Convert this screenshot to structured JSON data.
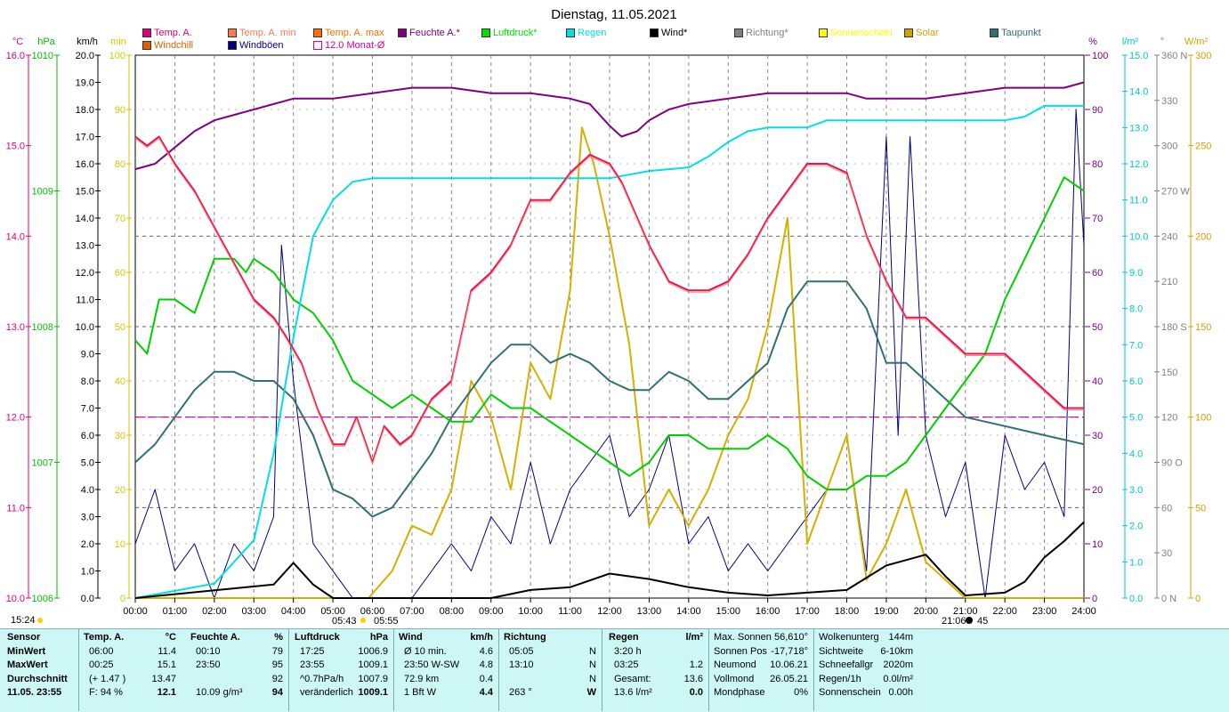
{
  "title": "Dienstag, 11.05.2021",
  "axes": {
    "left": [
      {
        "unit": "°C",
        "color": "#e0007a",
        "ticks": [
          "16.0",
          "15.0",
          "14.0",
          "13.0",
          "12.0",
          "11.0",
          "10.0"
        ]
      },
      {
        "unit": "hPa",
        "color": "#00c000",
        "ticks": [
          "1010",
          "1009",
          "1008",
          "1007",
          "1006"
        ]
      },
      {
        "unit": "km/h",
        "color": "#000000",
        "ticks": [
          "20.0",
          "19.0",
          "18.0",
          "17.0",
          "16.0",
          "15.0",
          "14.0",
          "13.0",
          "12.0",
          "11.0",
          "10.0",
          "9.0",
          "8.0",
          "7.0",
          "6.0",
          "5.0",
          "4.0",
          "3.0",
          "2.0",
          "1.0",
          "0.0"
        ]
      },
      {
        "unit": "min",
        "color": "#d4c800",
        "ticks": [
          "100",
          "90",
          "80",
          "70",
          "60",
          "50",
          "40",
          "30",
          "20",
          "10",
          "0"
        ]
      }
    ],
    "right": [
      {
        "unit": "%",
        "color": "#800080",
        "ticks": [
          "100",
          "90",
          "80",
          "70",
          "60",
          "50",
          "40",
          "30",
          "20",
          "10",
          "0"
        ]
      },
      {
        "unit": "l/m²",
        "color": "#00c8c8",
        "ticks": [
          "15.0",
          "14.0",
          "13.0",
          "12.0",
          "11.0",
          "10.0",
          "9.0",
          "8.0",
          "7.0",
          "6.0",
          "5.0",
          "4.0",
          "3.0",
          "2.0",
          "1.0",
          "0.0"
        ]
      },
      {
        "unit": "°",
        "color": "#808080",
        "ticks": [
          "360 N",
          "330",
          "300",
          "270 W",
          "240",
          "210",
          "180 S",
          "150",
          "120",
          "90  O",
          "60",
          "30",
          "0   N"
        ]
      },
      {
        "unit": "W/m²",
        "color": "#d4a000",
        "ticks": [
          "300",
          "250",
          "200",
          "150",
          "100",
          "50",
          "0"
        ]
      }
    ],
    "x_ticks": [
      "00:00",
      "01:00",
      "02:00",
      "03:00",
      "04:00",
      "05:00",
      "06:00",
      "07:00",
      "08:00",
      "09:00",
      "10:00",
      "11:00",
      "12:00",
      "13:00",
      "14:00",
      "15:00",
      "16:00",
      "17:00",
      "18:00",
      "19:00",
      "20:00",
      "21:00",
      "22:00",
      "23:00",
      "24:00"
    ]
  },
  "legend": [
    {
      "label": "Temp. A.",
      "color": "#e0007a"
    },
    {
      "label": "Windchill",
      "color": "#e06000"
    },
    {
      "label": "Temp. A. min",
      "color": "#ff7a50"
    },
    {
      "label": "Windböen",
      "color": "#000080"
    },
    {
      "label": "Temp. A. max",
      "color": "#ff7000"
    },
    {
      "label": "12.0 Monat-Ø",
      "color": "#d000a0"
    },
    {
      "label": "Feuchte A.*",
      "color": "#800080"
    },
    {
      "label": "Luftdruck*",
      "color": "#00e000"
    },
    {
      "label": "Regen",
      "color": "#00e0e0"
    },
    {
      "label": "Wind*",
      "color": "#000000"
    },
    {
      "label": "Richtung*",
      "color": "#808080"
    },
    {
      "label": "Sonnenschein",
      "color": "#ffff00"
    },
    {
      "label": "Solar",
      "color": "#d4a000"
    },
    {
      "label": "Taupunkt",
      "color": "#307070"
    }
  ],
  "annotations": {
    "time_now": "15:24",
    "sunrise": "05:43",
    "sunrise2": "05:55",
    "sunset": "21:06",
    "sunset2": "45"
  },
  "chart_data": {
    "type": "line",
    "x_unit": "hours",
    "monthly_avg_temp": 12.0,
    "series": [
      {
        "name": "Temp. A.",
        "unit": "°C",
        "color": "#e81060",
        "x": [
          0,
          0.3,
          0.6,
          1,
          1.5,
          2,
          2.5,
          3,
          3.5,
          3.8,
          4.2,
          4.6,
          5,
          5.3,
          5.6,
          6,
          6.3,
          6.7,
          7,
          7.5,
          8,
          8.5,
          9,
          9.5,
          10,
          10.5,
          11,
          11.5,
          12,
          12.3,
          12.7,
          13,
          13.5,
          14,
          14.5,
          15,
          15.5,
          16,
          16.5,
          17,
          17.5,
          18,
          18.5,
          19,
          19.5,
          20,
          20.5,
          21,
          21.5,
          22,
          22.5,
          23,
          23.5,
          24
        ],
        "y": [
          15.1,
          15.0,
          15.1,
          14.8,
          14.5,
          14.1,
          13.7,
          13.3,
          13.1,
          12.9,
          12.6,
          12.1,
          11.7,
          11.7,
          12.0,
          11.5,
          11.9,
          11.7,
          11.8,
          12.2,
          12.4,
          13.4,
          13.6,
          13.9,
          14.4,
          14.4,
          14.7,
          14.9,
          14.8,
          14.6,
          14.2,
          13.9,
          13.5,
          13.4,
          13.4,
          13.5,
          13.8,
          14.2,
          14.5,
          14.8,
          14.8,
          14.7,
          14.0,
          13.5,
          13.1,
          13.1,
          12.9,
          12.7,
          12.7,
          12.7,
          12.5,
          12.3,
          12.1,
          12.1
        ]
      },
      {
        "name": "Feuchte A.*",
        "unit": "%",
        "color": "#800080",
        "x": [
          0,
          0.5,
          1,
          1.5,
          2,
          2.5,
          3,
          3.5,
          4,
          5,
          6,
          7,
          8,
          9,
          10,
          11,
          11.5,
          12,
          12.3,
          12.7,
          13,
          13.5,
          14,
          15,
          16,
          17,
          18,
          18.5,
          19,
          20,
          21,
          22,
          22.5,
          23,
          23.5,
          24
        ],
        "y": [
          79,
          80,
          83,
          86,
          88,
          89,
          90,
          91,
          92,
          92,
          93,
          94,
          94,
          93,
          93,
          92,
          91,
          87,
          85,
          86,
          88,
          90,
          91,
          92,
          93,
          93,
          93,
          92,
          92,
          92,
          93,
          94,
          94,
          94,
          94,
          95
        ]
      },
      {
        "name": "Luftdruck*",
        "unit": "hPa",
        "color": "#00d000",
        "x": [
          0,
          0.3,
          0.6,
          1,
          1.5,
          2,
          2.5,
          2.8,
          3,
          3.5,
          4,
          4.5,
          5,
          5.5,
          6,
          6.5,
          7,
          7.5,
          8,
          8.5,
          9,
          9.5,
          10,
          10.5,
          11,
          11.5,
          12,
          12.5,
          13,
          13.5,
          14,
          14.5,
          15,
          15.5,
          16,
          16.5,
          17,
          17.5,
          18,
          18.5,
          19,
          19.5,
          20,
          20.5,
          21,
          21.5,
          22,
          22.5,
          23,
          23.5,
          24
        ],
        "y": [
          1007.9,
          1007.8,
          1008.2,
          1008.2,
          1008.1,
          1008.5,
          1008.5,
          1008.4,
          1008.5,
          1008.4,
          1008.2,
          1008.1,
          1007.9,
          1007.6,
          1007.5,
          1007.4,
          1007.5,
          1007.4,
          1007.3,
          1007.3,
          1007.5,
          1007.4,
          1007.4,
          1007.3,
          1007.2,
          1007.1,
          1007.0,
          1006.9,
          1007.0,
          1007.2,
          1007.2,
          1007.1,
          1007.1,
          1007.1,
          1007.2,
          1007.1,
          1006.9,
          1006.8,
          1006.8,
          1006.9,
          1006.9,
          1007.0,
          1007.2,
          1007.4,
          1007.6,
          1007.8,
          1008.2,
          1008.5,
          1008.8,
          1009.1,
          1009.0
        ]
      },
      {
        "name": "Regen",
        "unit": "l/m²",
        "color": "#00e0e0",
        "x": [
          0,
          1,
          2,
          3,
          3.5,
          4,
          4.5,
          5,
          5.5,
          6,
          12,
          12.5,
          13,
          14,
          14.5,
          15,
          15.5,
          16,
          17,
          17.5,
          22,
          22.5,
          23,
          24
        ],
        "y": [
          0,
          0.2,
          0.4,
          1.6,
          4.0,
          7.2,
          10.0,
          11.0,
          11.5,
          11.6,
          11.6,
          11.7,
          11.8,
          11.9,
          12.2,
          12.6,
          12.9,
          13.0,
          13.0,
          13.2,
          13.2,
          13.3,
          13.6,
          13.6
        ]
      },
      {
        "name": "Wind*",
        "unit": "km/h",
        "color": "#000000",
        "x": [
          0,
          3.5,
          4,
          4.5,
          5,
          6,
          8,
          9,
          10,
          11,
          12,
          13,
          14,
          15,
          16,
          17,
          18,
          19,
          20,
          20.5,
          21,
          22,
          22.5,
          23,
          23.5,
          24
        ],
        "y": [
          0,
          0.5,
          1.3,
          0.5,
          0,
          0,
          0,
          0,
          0.3,
          0.4,
          0.9,
          0.7,
          0.4,
          0.2,
          0.1,
          0.2,
          0.3,
          1.2,
          1.6,
          0.8,
          0.1,
          0.2,
          0.6,
          1.5,
          2.1,
          2.8
        ]
      },
      {
        "name": "Solar",
        "unit": "W/m²",
        "color": "#d4b000",
        "x": [
          0,
          5.9,
          6.5,
          7,
          7.5,
          8,
          8.5,
          9,
          9.5,
          10,
          10.5,
          11,
          11.3,
          11.6,
          12,
          12.5,
          13,
          13.5,
          14,
          14.5,
          15,
          15.5,
          16,
          16.5,
          17,
          17.5,
          18,
          18.5,
          19,
          19.5,
          20,
          20.5,
          21,
          22,
          24
        ],
        "y": [
          0,
          0,
          15,
          40,
          35,
          60,
          120,
          100,
          60,
          130,
          110,
          170,
          260,
          240,
          200,
          140,
          40,
          60,
          40,
          60,
          90,
          110,
          150,
          210,
          30,
          60,
          90,
          10,
          30,
          60,
          20,
          10,
          0,
          0,
          0
        ]
      },
      {
        "name": "Taupunkt",
        "unit": "°C",
        "color": "#307070",
        "x": [
          0,
          0.5,
          1,
          1.5,
          2,
          2.5,
          3,
          3.5,
          4,
          4.5,
          5,
          5.5,
          6,
          6.5,
          7,
          7.5,
          8,
          8.5,
          9,
          9.5,
          10,
          10.5,
          11,
          11.5,
          12,
          12.5,
          13,
          13.5,
          14,
          14.5,
          15,
          15.5,
          16,
          16.5,
          17,
          17.5,
          18,
          18.5,
          19,
          19.5,
          20,
          21,
          22,
          23,
          24
        ],
        "y": [
          11.5,
          11.7,
          12.0,
          12.3,
          12.5,
          12.5,
          12.4,
          12.4,
          12.2,
          11.8,
          11.2,
          11.1,
          10.9,
          11.0,
          11.3,
          11.6,
          12.0,
          12.3,
          12.6,
          12.8,
          12.8,
          12.6,
          12.7,
          12.6,
          12.4,
          12.3,
          12.3,
          12.5,
          12.4,
          12.2,
          12.2,
          12.4,
          12.6,
          13.2,
          13.5,
          13.5,
          13.5,
          13.2,
          12.6,
          12.6,
          12.4,
          12.0,
          11.9,
          11.8,
          11.7
        ]
      },
      {
        "name": "Windböen",
        "unit": "km/h",
        "color": "#000080",
        "x": [
          0,
          0.5,
          1,
          1.5,
          2,
          2.5,
          3,
          3.5,
          3.7,
          4,
          4.5,
          5,
          5.5,
          6,
          7,
          7.5,
          8,
          8.5,
          9,
          9.5,
          10,
          10.5,
          11,
          11.5,
          12,
          12.5,
          13,
          13.5,
          14,
          14.5,
          15,
          15.5,
          16,
          16.5,
          17,
          17.5,
          18,
          18.5,
          19,
          19.3,
          19.6,
          20,
          20.5,
          21,
          21.5,
          22,
          22.5,
          23,
          23.5,
          23.8,
          24
        ],
        "y": [
          2,
          4,
          1,
          2,
          0,
          2,
          1,
          3,
          13,
          8,
          2,
          1,
          0,
          0,
          0,
          1,
          2,
          1,
          3,
          2,
          5,
          2,
          4,
          5,
          6,
          3,
          4,
          6,
          2,
          3,
          1,
          2,
          1,
          2,
          3,
          4,
          6,
          1,
          17,
          6,
          17,
          6,
          3,
          5,
          0,
          6,
          4,
          5,
          3,
          18,
          13
        ]
      }
    ]
  },
  "footer": {
    "sensor": {
      "header": "Sensor",
      "rows": [
        "MinWert",
        "MaxWert",
        "Durchschnitt",
        "11.05. 23:55"
      ]
    },
    "temp": {
      "header": "Temp. A.",
      "unit": "°C",
      "rows": [
        [
          "06:00",
          "11.4"
        ],
        [
          "00:25",
          "15.1"
        ],
        [
          "(+ 1.47 )",
          "13.47"
        ],
        [
          "F: 94 %",
          "12.1"
        ]
      ]
    },
    "humidity": {
      "header": "Feuchte A.",
      "unit": "%",
      "rows": [
        [
          "00:10",
          "79"
        ],
        [
          "23:50",
          "95"
        ],
        [
          "",
          "92"
        ],
        [
          "10.09 g/m³",
          "94"
        ]
      ]
    },
    "pressure": {
      "header": "Luftdruck",
      "unit": "hPa",
      "rows": [
        [
          "17:25",
          "1006.9"
        ],
        [
          "23:55",
          "1009.1"
        ],
        [
          "^0.7hPa/h",
          "1007.9"
        ],
        [
          "veränderlich",
          "1009.1"
        ]
      ]
    },
    "wind": {
      "header": "Wind",
      "unit": "km/h",
      "rows": [
        [
          "Ø 10 min.",
          "4.6"
        ],
        [
          "23:50   W-SW",
          "4.8"
        ],
        [
          "72.9 km",
          "0.4"
        ],
        [
          "1 Bft W",
          "4.4"
        ]
      ]
    },
    "direction": {
      "header": "Richtung",
      "rows": [
        [
          "05:05",
          "N"
        ],
        [
          "13:10",
          "N"
        ],
        [
          "",
          "N"
        ],
        [
          "263 °",
          "W"
        ]
      ]
    },
    "rain": {
      "header": "Regen",
      "unit": "l/m²",
      "rows": [
        [
          "3:20 h",
          ""
        ],
        [
          "03:25",
          "1.2"
        ],
        [
          "Gesamt:",
          "13.6"
        ],
        [
          "13.6 l/m²",
          "0.0"
        ]
      ]
    },
    "sun": {
      "rows": [
        [
          "Max. Sonnen",
          "56,610°"
        ],
        [
          "Sonnen Pos",
          "-17,718°"
        ],
        [
          "Neumond",
          "10.06.21"
        ],
        [
          "Vollmond",
          "26.05.21"
        ],
        [
          "Mondphase",
          "0%"
        ]
      ]
    },
    "clouds": {
      "rows": [
        [
          "Wolkenunterg",
          "144m"
        ],
        [
          "Sichtweite",
          "6-10km"
        ],
        [
          "Schneefallgr",
          "2020m"
        ],
        [
          "Regen/1h",
          "0.0l/m²"
        ],
        [
          "Sonnenschein",
          "0.00h"
        ]
      ]
    }
  }
}
